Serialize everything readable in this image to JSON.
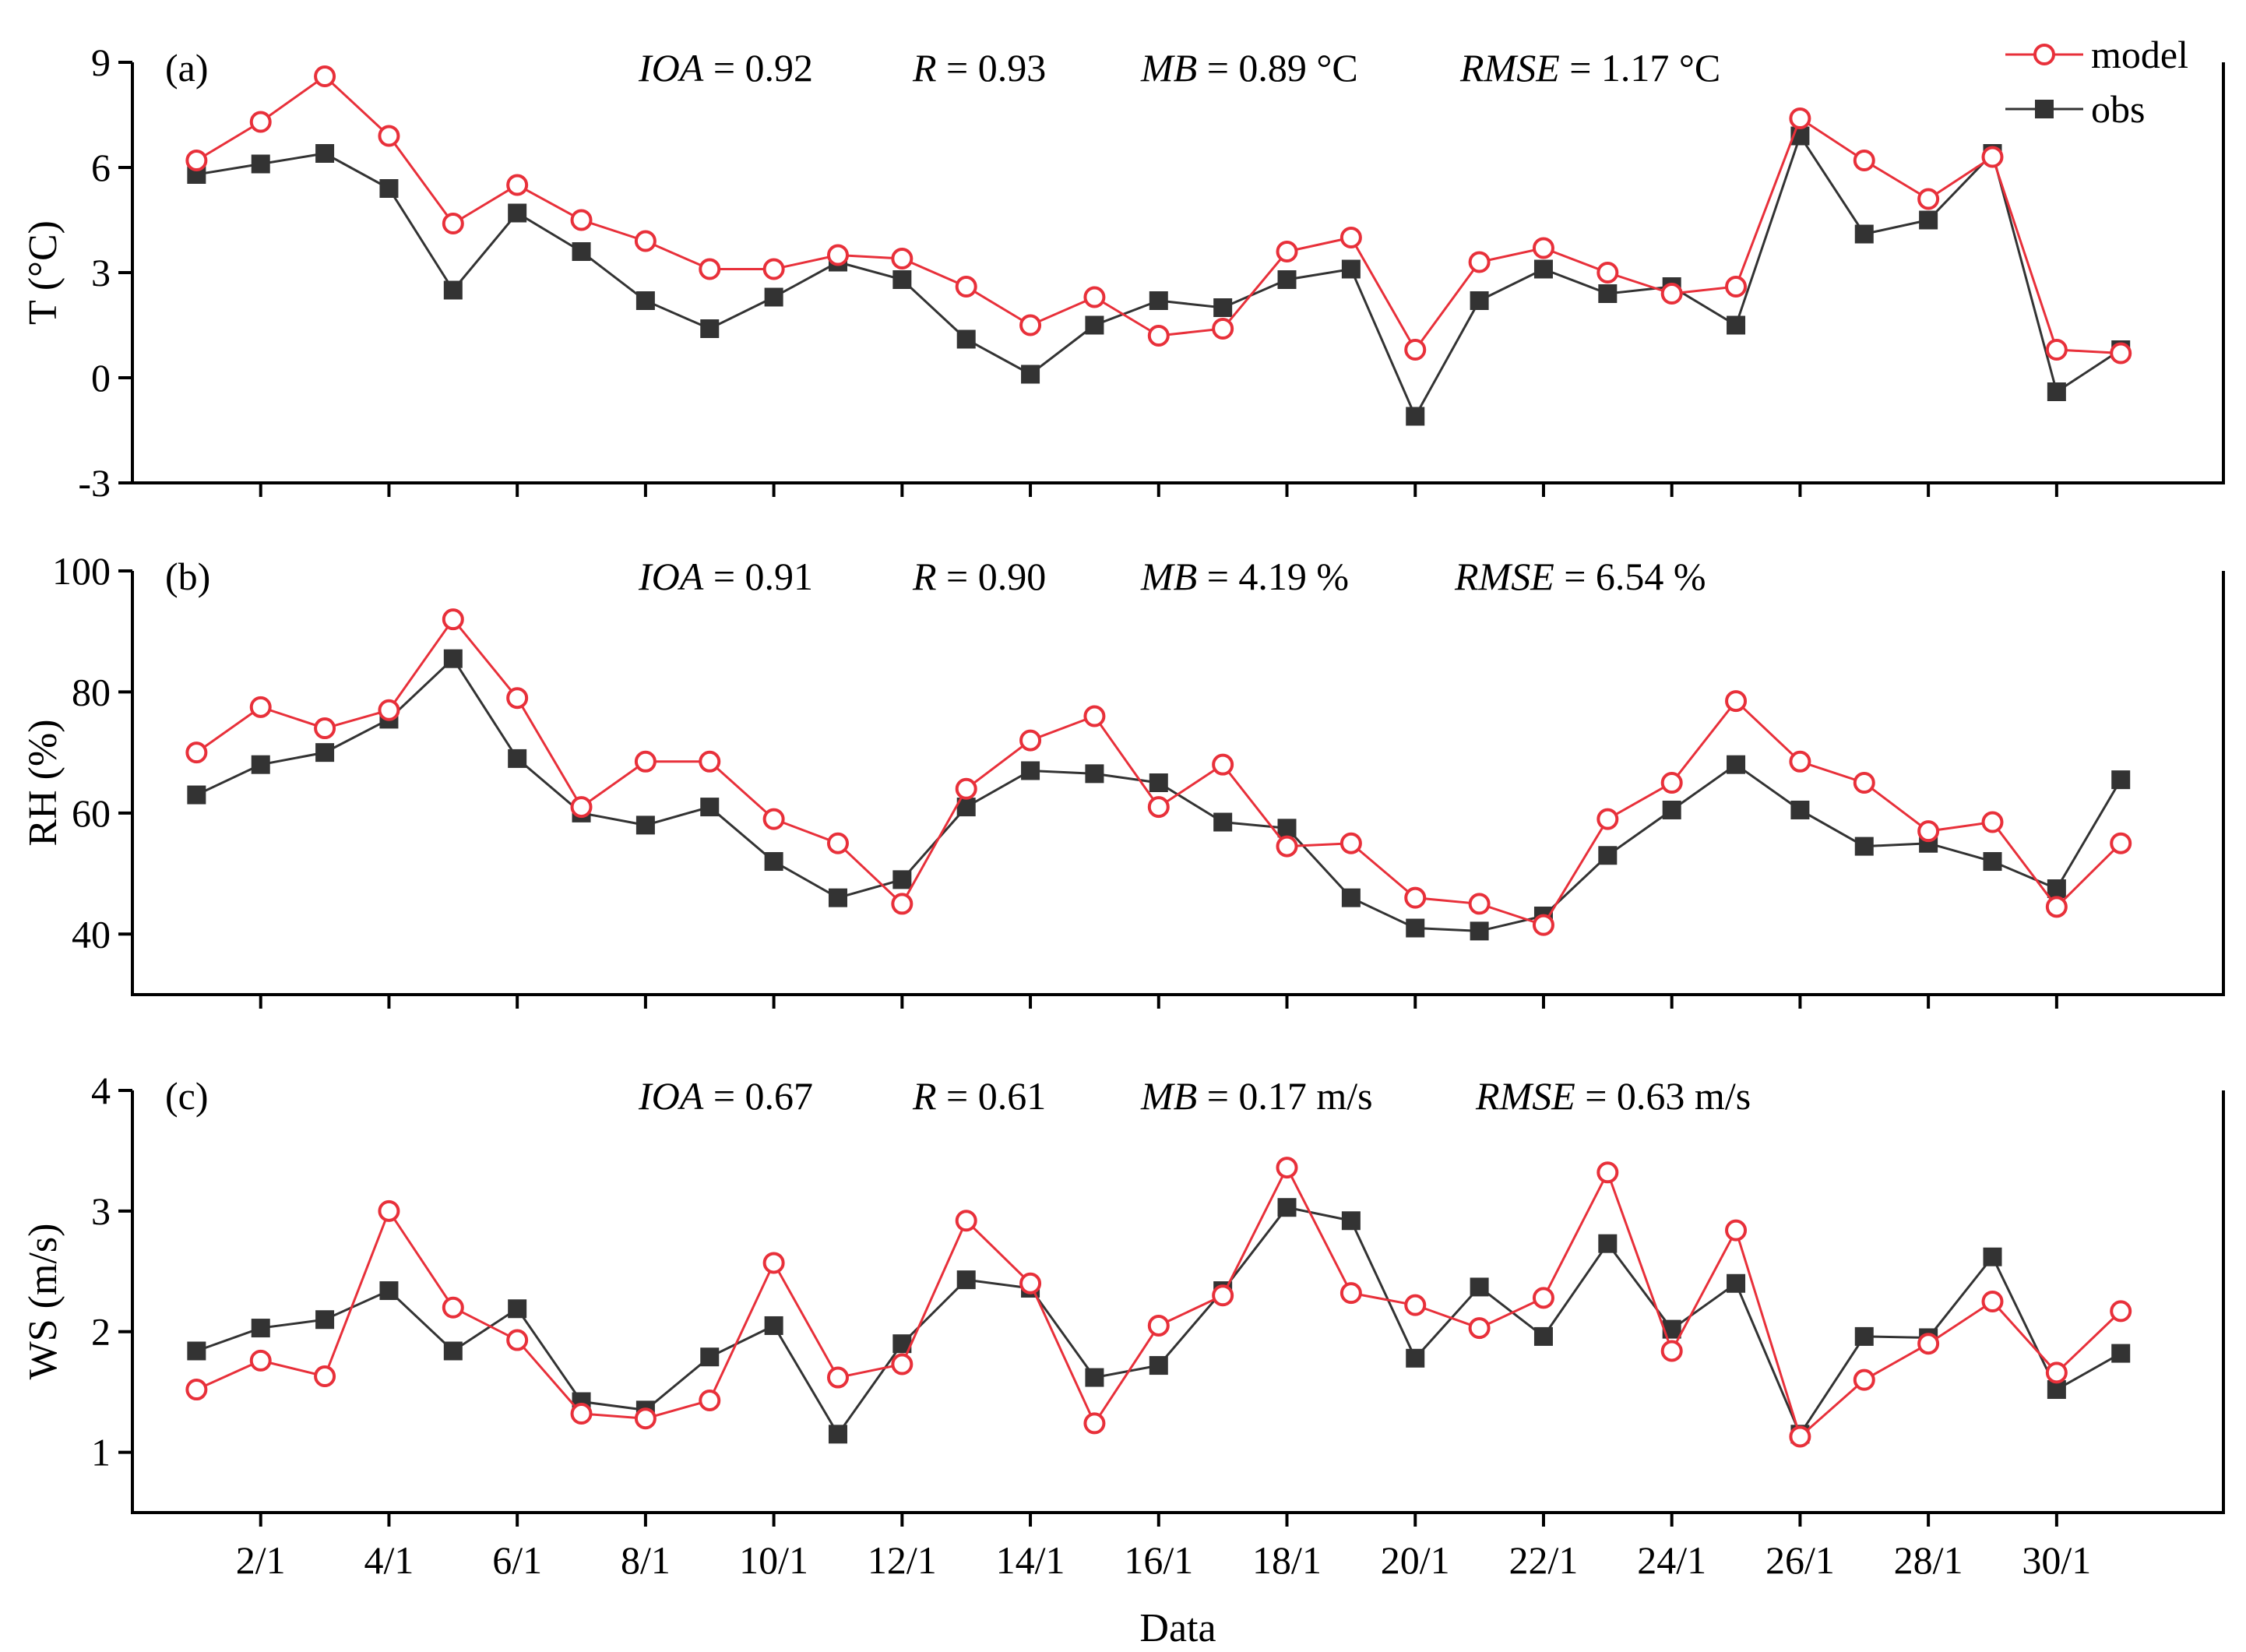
{
  "chart_data": [
    {
      "type": "line",
      "panel_label": "(a)",
      "ylabel": "T (°C)",
      "ylim": [
        -3,
        9
      ],
      "yticks": [
        "-3",
        "0",
        "3",
        "6",
        "9"
      ],
      "stats": [
        {
          "name": "IOA",
          "value": " = 0.92"
        },
        {
          "name": "R",
          "value": " = 0.93"
        },
        {
          "name": "MB",
          "value": " = 0.89 °C"
        },
        {
          "name": "RMSE",
          "value": " = 1.17 °C"
        }
      ],
      "x": [
        1,
        2,
        3,
        4,
        5,
        6,
        7,
        8,
        9,
        10,
        11,
        12,
        13,
        14,
        15,
        16,
        17,
        18,
        19,
        20,
        21,
        22,
        23,
        24,
        25,
        26,
        27,
        28,
        29,
        30,
        31
      ],
      "series": [
        {
          "name": "model",
          "values": [
            6.2,
            7.3,
            8.6,
            6.9,
            4.4,
            5.5,
            4.5,
            3.9,
            3.1,
            3.1,
            3.5,
            3.4,
            2.6,
            1.5,
            2.3,
            1.2,
            1.4,
            3.6,
            4.0,
            0.8,
            3.3,
            3.7,
            3.0,
            2.4,
            2.6,
            7.4,
            6.2,
            5.1,
            6.3,
            0.8,
            0.7
          ]
        },
        {
          "name": "obs",
          "values": [
            5.8,
            6.1,
            6.4,
            5.4,
            2.5,
            4.7,
            3.6,
            2.2,
            1.4,
            2.3,
            3.3,
            2.8,
            1.1,
            0.1,
            1.5,
            2.2,
            2.0,
            2.8,
            3.1,
            -1.1,
            2.2,
            3.1,
            2.4,
            2.6,
            1.5,
            6.9,
            4.1,
            4.5,
            6.4,
            -0.4,
            0.8
          ]
        }
      ]
    },
    {
      "type": "line",
      "panel_label": "(b)",
      "ylabel": "RH (%)",
      "ylim": [
        30,
        100
      ],
      "yticks": [
        "40",
        "60",
        "80",
        "100"
      ],
      "stats": [
        {
          "name": "IOA",
          "value": " = 0.91"
        },
        {
          "name": "R",
          "value": " = 0.90"
        },
        {
          "name": "MB",
          "value": " = 4.19 %"
        },
        {
          "name": "RMSE",
          "value": " = 6.54 %"
        }
      ],
      "x": [
        1,
        2,
        3,
        4,
        5,
        6,
        7,
        8,
        9,
        10,
        11,
        12,
        13,
        14,
        15,
        16,
        17,
        18,
        19,
        20,
        21,
        22,
        23,
        24,
        25,
        26,
        27,
        28,
        29,
        30,
        31
      ],
      "series": [
        {
          "name": "model",
          "values": [
            70,
            77.5,
            74,
            77,
            92,
            79,
            61,
            68.5,
            68.5,
            59,
            55,
            45,
            64,
            72,
            76,
            61,
            68,
            54.5,
            55,
            46,
            45,
            41.5,
            59,
            65,
            78.5,
            68.5,
            65,
            57,
            58.5,
            44.5,
            55
          ]
        },
        {
          "name": "obs",
          "values": [
            63,
            68,
            70,
            75.5,
            85.5,
            69,
            60,
            58,
            61,
            52,
            46,
            49,
            61,
            67,
            66.5,
            65,
            58.5,
            57.5,
            46,
            41,
            40.5,
            43,
            53,
            60.5,
            68,
            60.5,
            54.5,
            55,
            52,
            47.5,
            65.5
          ]
        }
      ]
    },
    {
      "type": "line",
      "panel_label": "(c)",
      "ylabel": "WS (m/s)",
      "xlabel": "Data",
      "ylim": [
        0.5,
        4
      ],
      "yticks": [
        "1",
        "2",
        "3",
        "4"
      ],
      "stats": [
        {
          "name": "IOA",
          "value": " = 0.67"
        },
        {
          "name": "R",
          "value": " = 0.61"
        },
        {
          "name": "MB",
          "value": " = 0.17 m/s"
        },
        {
          "name": "RMSE",
          "value": " = 0.63 m/s"
        }
      ],
      "x": [
        1,
        2,
        3,
        4,
        5,
        6,
        7,
        8,
        9,
        10,
        11,
        12,
        13,
        14,
        15,
        16,
        17,
        18,
        19,
        20,
        21,
        22,
        23,
        24,
        25,
        26,
        27,
        28,
        29,
        30,
        31
      ],
      "xtick_labels": [
        "2/1",
        "4/1",
        "6/1",
        "8/1",
        "10/1",
        "12/1",
        "14/1",
        "16/1",
        "18/1",
        "20/1",
        "22/1",
        "24/1",
        "26/1",
        "28/1",
        "30/1"
      ],
      "series": [
        {
          "name": "model",
          "values": [
            1.52,
            1.76,
            1.63,
            3.0,
            2.2,
            1.93,
            1.32,
            1.28,
            1.43,
            2.57,
            1.62,
            1.73,
            2.92,
            2.4,
            1.24,
            2.05,
            2.3,
            3.36,
            2.32,
            2.22,
            2.03,
            2.28,
            3.32,
            1.84,
            2.84,
            1.13,
            1.6,
            1.9,
            2.25,
            1.66,
            2.17
          ]
        },
        {
          "name": "obs",
          "values": [
            1.84,
            2.03,
            2.1,
            2.34,
            1.84,
            2.19,
            1.42,
            1.35,
            1.79,
            2.05,
            1.15,
            1.9,
            2.43,
            2.36,
            1.62,
            1.72,
            2.34,
            3.03,
            2.92,
            1.78,
            2.37,
            1.96,
            2.73,
            2.02,
            2.4,
            1.15,
            1.96,
            1.95,
            2.62,
            1.52,
            1.82
          ]
        }
      ]
    }
  ],
  "legend": {
    "position": "top-right",
    "items": [
      {
        "label": "model",
        "color": "#e8303a",
        "marker": "open-circle"
      },
      {
        "label": "obs",
        "color": "#333333",
        "marker": "filled-square"
      }
    ]
  }
}
